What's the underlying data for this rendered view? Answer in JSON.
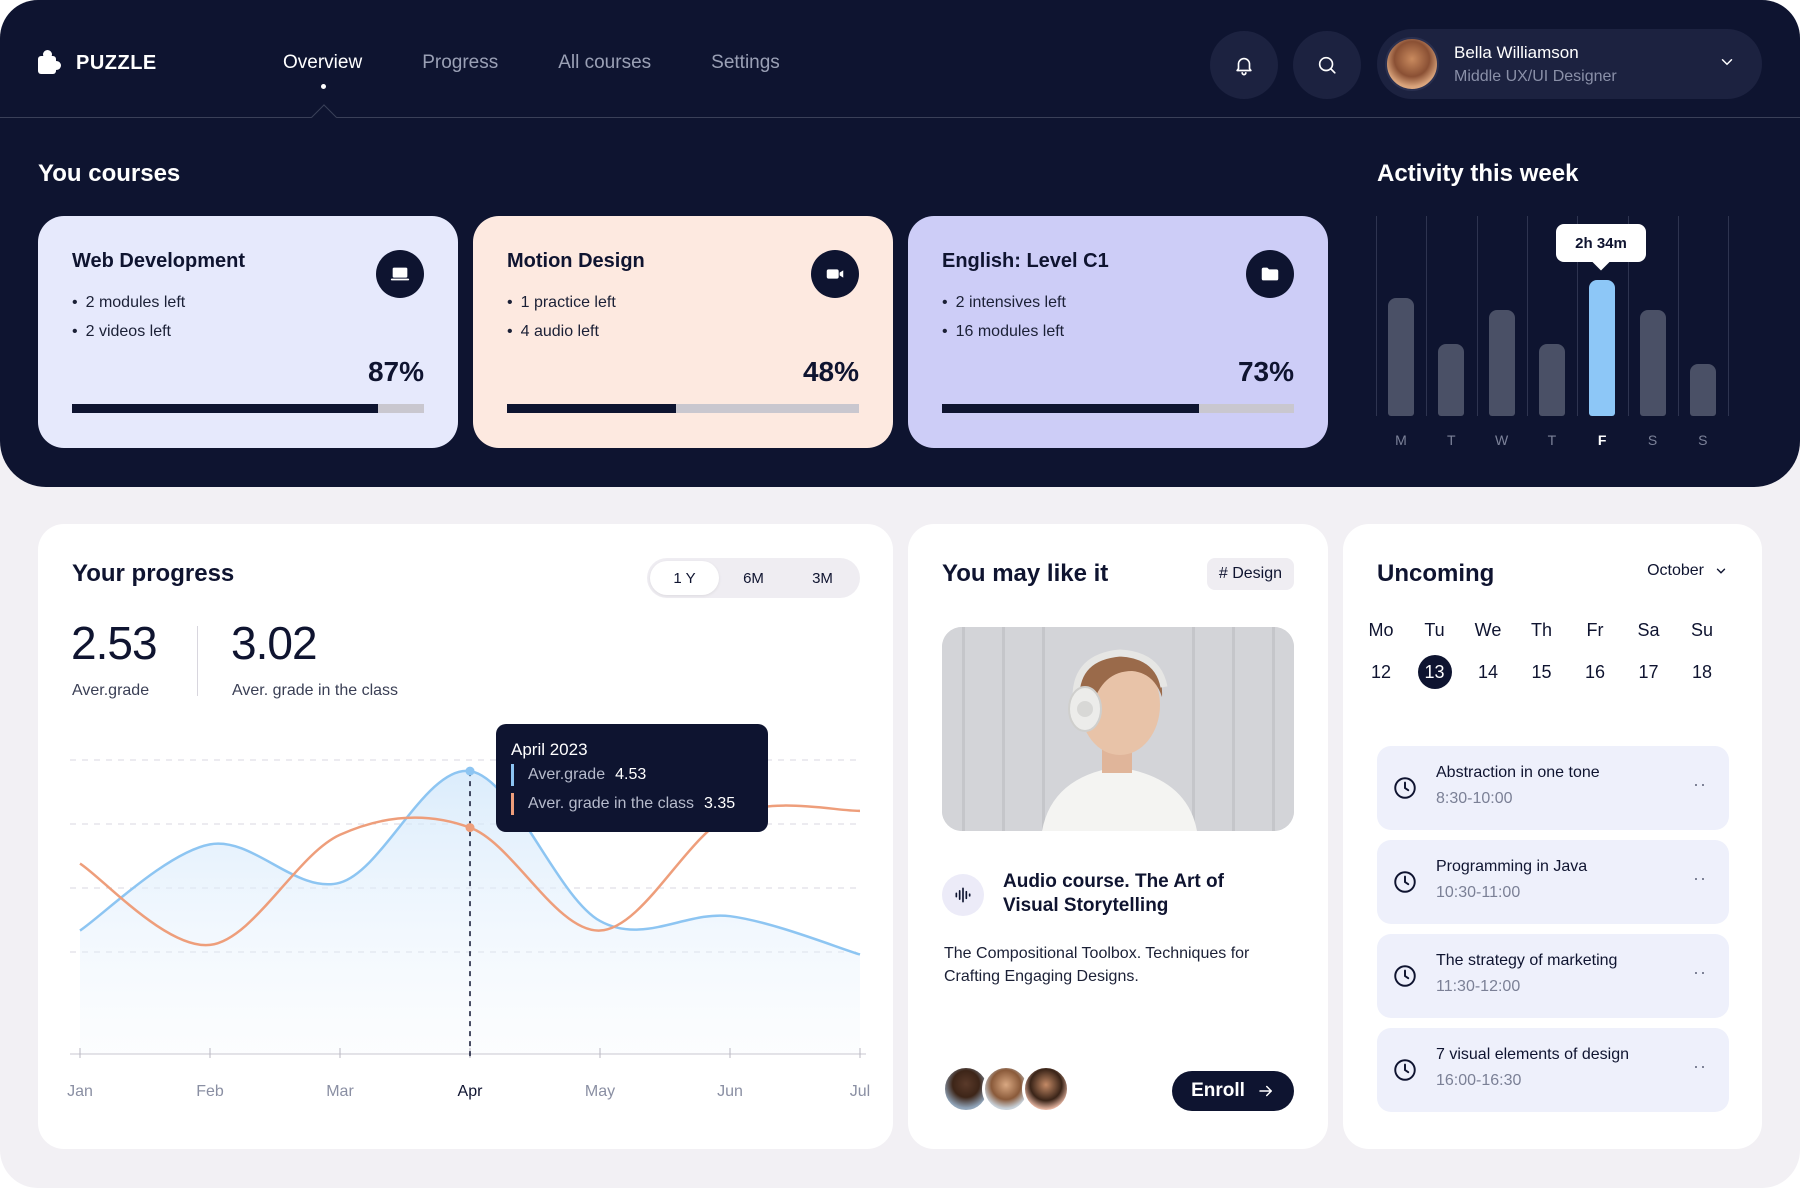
{
  "brand": {
    "name": "PUZZLE",
    "logo_icon": "puzzle-icon"
  },
  "nav": {
    "items": [
      {
        "label": "Overview",
        "active": true
      },
      {
        "label": "Progress",
        "active": false
      },
      {
        "label": "All courses",
        "active": false
      },
      {
        "label": "Settings",
        "active": false
      }
    ]
  },
  "header": {
    "notification_icon": "bell-icon",
    "search_icon": "search-icon",
    "user": {
      "name": "Bella Williamson",
      "role": "Middle UX/UI Designer"
    }
  },
  "courses": {
    "title": "You courses",
    "items": [
      {
        "title": "Web Development",
        "details": [
          "2 modules left",
          "2 videos left"
        ],
        "percent_label": "87%",
        "progress": 0.87,
        "icon": "laptop-icon",
        "bg": "#e6e9fc"
      },
      {
        "title": "Motion Design",
        "details": [
          "1 practice left",
          "4 audio left"
        ],
        "percent_label": "48%",
        "progress": 0.48,
        "icon": "video-camera-icon",
        "bg": "#fde9e0"
      },
      {
        "title": "English: Level C1",
        "details": [
          "2 intensives left",
          "16 modules left"
        ],
        "percent_label": "73%",
        "progress": 0.73,
        "icon": "folder-icon",
        "bg": "#cdcdf7"
      }
    ]
  },
  "activity": {
    "title": "Activity this week",
    "days": [
      "M",
      "T",
      "W",
      "T",
      "F",
      "S",
      "S"
    ],
    "values": [
      0.59,
      0.36,
      0.53,
      0.36,
      0.68,
      0.53,
      0.26
    ],
    "active_index": 4,
    "tooltip": "2h 34m"
  },
  "progress": {
    "title": "Your progress",
    "ranges": [
      {
        "label": "1 Y",
        "active": true
      },
      {
        "label": "6M",
        "active": false
      },
      {
        "label": "3M",
        "active": false
      }
    ],
    "grade": {
      "value": "2.53",
      "label": "Aver.grade"
    },
    "class_grade": {
      "value": "3.02",
      "label": "Aver. grade in the class"
    },
    "tooltip": {
      "title": "April 2023",
      "row1_label": "Aver.grade",
      "row1_value": "4.53",
      "row2_label": "Aver. grade in the class",
      "row2_value": "3.35"
    }
  },
  "chart_data": {
    "type": "line",
    "x": [
      "Jan",
      "Feb",
      "Mar",
      "Apr",
      "May",
      "Jun",
      "Jul"
    ],
    "highlight": "Apr",
    "series": [
      {
        "name": "Aver.grade",
        "color": "#8dc5f2",
        "values": [
          1.2,
          3.0,
          2.2,
          4.53,
          1.4,
          1.5,
          0.7
        ]
      },
      {
        "name": "Aver. grade in the class",
        "color": "#ee9e7b",
        "values": [
          2.6,
          0.9,
          3.2,
          3.35,
          1.2,
          3.6,
          3.7
        ]
      }
    ]
  },
  "recommend": {
    "title": "You may like it",
    "tag": "# Design",
    "audio_icon": "audio-wave-icon",
    "course_title": "Audio course. The Art of Visual Storytelling",
    "description": "The Compositional Toolbox. Techniques for Crafting Engaging Designs.",
    "enroll_label": "Enroll",
    "enroll_icon": "arrow-right-icon"
  },
  "upcoming": {
    "title": "Uncoming",
    "month": "October",
    "weekdays": [
      "Mo",
      "Tu",
      "We",
      "Th",
      "Fr",
      "Sa",
      "Su"
    ],
    "days": [
      "12",
      "13",
      "14",
      "15",
      "16",
      "17",
      "18"
    ],
    "today": "13",
    "events": [
      {
        "title": "Abstraction in one tone",
        "time": "8:30-10:00"
      },
      {
        "title": "Programming in Java",
        "time": "10:30-11:00"
      },
      {
        "title": "The strategy of marketing",
        "time": "11:30-12:00"
      },
      {
        "title": "7 visual elements of design",
        "time": "16:00-16:30"
      }
    ],
    "more_label": "··"
  },
  "colors": {
    "dark": "#0e1430",
    "accent_blue": "#8dc7f7",
    "accent_orange": "#ee9e7b"
  }
}
